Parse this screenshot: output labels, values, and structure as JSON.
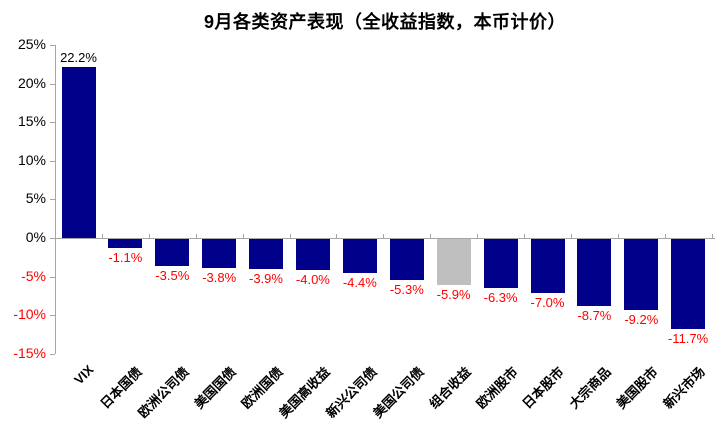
{
  "chart_data": {
    "type": "bar",
    "title": "9月各类资产表现（全收益指数，本币计价）",
    "categories": [
      "VIX",
      "日本国债",
      "欧洲公司债",
      "美国国债",
      "欧洲国债",
      "美国高收益",
      "新兴公司债",
      "美国公司债",
      "组合收益",
      "欧洲股市",
      "日本股市",
      "大宗商品",
      "美国股市",
      "新兴市场"
    ],
    "values": [
      22.2,
      -1.1,
      -3.5,
      -3.8,
      -3.9,
      -4.0,
      -4.4,
      -5.3,
      -5.9,
      -6.3,
      -7.0,
      -8.7,
      -9.2,
      -11.7
    ],
    "value_labels": [
      "22.2%",
      "-1.1%",
      "-3.5%",
      "-3.8%",
      "-3.9%",
      "-4.0%",
      "-4.4%",
      "-5.3%",
      "-5.9%",
      "-6.3%",
      "-7.0%",
      "-8.7%",
      "-9.2%",
      "-11.7%"
    ],
    "bar_colors": [
      "#00008B",
      "#00008B",
      "#00008B",
      "#00008B",
      "#00008B",
      "#00008B",
      "#00008B",
      "#00008B",
      "#BFBFBF",
      "#00008B",
      "#00008B",
      "#00008B",
      "#00008B",
      "#00008B"
    ],
    "label_color_positive": "#000000",
    "label_color_negative": "#FF0000",
    "axis_color": "#A6A6A6",
    "xlabel": "",
    "ylabel": "",
    "ylim": [
      -15,
      25
    ],
    "ytick_step": 5,
    "yticks": [
      "25%",
      "20%",
      "15%",
      "10%",
      "5%",
      "0%",
      "-5%",
      "-10%",
      "-15%"
    ],
    "grid": "off",
    "legend": "none"
  }
}
